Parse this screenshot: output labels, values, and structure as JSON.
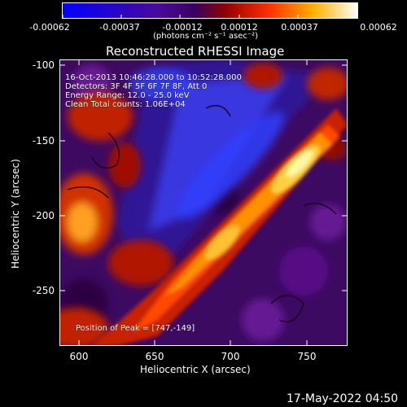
{
  "colorbar": {
    "tick_labels": [
      "-0.00062",
      "-0.00037",
      "-0.00012",
      "0.00012",
      "0.00037",
      "0.00062"
    ],
    "units_html": "(photons cm⁻² s⁻¹ asec⁻²)"
  },
  "title": "Reconstructed RHESSI Image",
  "overlay": {
    "line1": "16-Oct-2013 10:46:28.000 to 10:52:28.000",
    "line2": "Detectors: 3F 4F 5F 6F 7F 8F, Att 0",
    "line3": "Energy Range: 12.0 - 25.0 keV",
    "line4": "Clean     Total counts: 1.06E+04",
    "peak": "Position of Peak = [747,-149]"
  },
  "axes": {
    "xlabel": "Heliocentric X (arcsec)",
    "ylabel": "Heliocentric Y (arcsec)",
    "xticks": [
      "600",
      "650",
      "700",
      "750"
    ],
    "yticks": [
      "-100",
      "-150",
      "-200",
      "-250"
    ]
  },
  "timestamp": "17-May-2022 04:50",
  "colors": {
    "map_low": "#0000ff",
    "map_mid": "#5a0a8c",
    "map_high_red": "#e02000",
    "map_high_yellow": "#ffff80",
    "map_top": "#ffffff"
  }
}
